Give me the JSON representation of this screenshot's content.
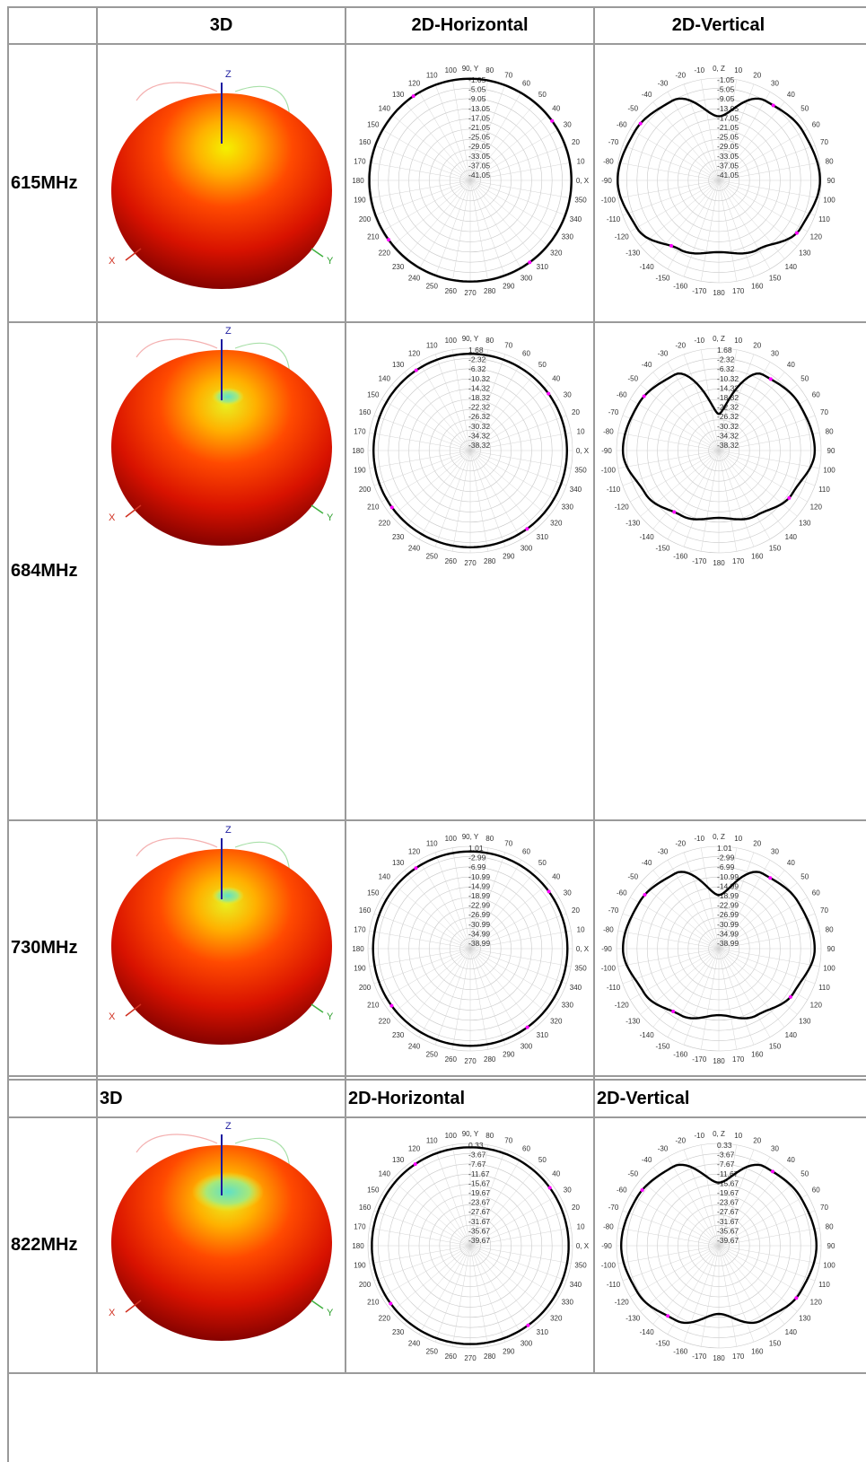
{
  "header1": {
    "c3d": "3D",
    "horizontal": "2D-Horizontal",
    "vertical": "2D-Vertical"
  },
  "header2": {
    "c3d": "3D",
    "horizontal": "2D-Horizontal",
    "vertical": "2D-Vertical"
  },
  "axes_3d": {
    "x": "X",
    "y": "Y",
    "z": "Z"
  },
  "rows": [
    {
      "freq": "615MHz",
      "horizontal_levels": [
        "-1.05",
        "-5.05",
        "-9.05",
        "-13.05",
        "-17.05",
        "-21.05",
        "-25.05",
        "-29.05",
        "-33.05",
        "-37.05",
        "-41.05"
      ],
      "vertical_levels": [
        "-1.05",
        "-5.05",
        "-9.05",
        "-13.05",
        "-17.05",
        "-21.05",
        "-25.05",
        "-29.05",
        "-33.05",
        "-37.05",
        "-41.05"
      ]
    },
    {
      "freq": "684MHz",
      "horizontal_levels": [
        "1.68",
        "-2.32",
        "-6.32",
        "-10.32",
        "-14.32",
        "-18.32",
        "-22.32",
        "-26.32",
        "-30.32",
        "-34.32",
        "-38.32"
      ],
      "vertical_levels": [
        "1.68",
        "-2.32",
        "-6.32",
        "-10.32",
        "-14.32",
        "-18.32",
        "-22.32",
        "-26.32",
        "-30.32",
        "-34.32",
        "-38.32"
      ]
    },
    {
      "freq": "730MHz",
      "horizontal_levels": [
        "1.01",
        "-2.99",
        "-6.99",
        "-10.99",
        "-14.99",
        "-18.99",
        "-22.99",
        "-26.99",
        "-30.99",
        "-34.99",
        "-38.99"
      ],
      "vertical_levels": [
        "1.01",
        "-2.99",
        "-6.99",
        "-10.99",
        "-14.99",
        "-18.99",
        "-22.99",
        "-26.99",
        "-30.99",
        "-34.99",
        "-38.99"
      ]
    },
    {
      "freq": "822MHz",
      "horizontal_levels": [
        "0.33",
        "-3.67",
        "-7.67",
        "-11.67",
        "-15.67",
        "-19.67",
        "-23.67",
        "-27.67",
        "-31.67",
        "-35.67",
        "-39.67"
      ],
      "vertical_levels": [
        "0.33",
        "-3.67",
        "-7.67",
        "-11.67",
        "-15.67",
        "-19.67",
        "-23.67",
        "-27.67",
        "-31.67",
        "-35.67",
        "-39.67"
      ]
    }
  ],
  "polar_labels": {
    "horizontal": [
      "0, X",
      "10",
      "20",
      "30",
      "40",
      "50",
      "60",
      "70",
      "80",
      "90, Y",
      "100",
      "110",
      "120",
      "130",
      "140",
      "150",
      "160",
      "170",
      "180",
      "190",
      "200",
      "210",
      "220",
      "230",
      "240",
      "250",
      "260",
      "270",
      "280",
      "290",
      "300",
      "310",
      "320",
      "330",
      "340",
      "350"
    ],
    "vertical": [
      "90",
      "80",
      "70",
      "60",
      "50",
      "40",
      "30",
      "20",
      "10",
      "0, Z",
      "-10",
      "-20",
      "-30",
      "-40",
      "-50",
      "-60",
      "-70",
      "-80",
      "-90",
      "-100",
      "-110",
      "-120",
      "-130",
      "-140",
      "-150",
      "-160",
      "-170",
      "180",
      "170",
      "160",
      "150",
      "140",
      "130",
      "120",
      "110",
      "100"
    ]
  },
  "chart_data": [
    {
      "type": "polar",
      "panel": "615MHz 2D-Horizontal",
      "angles_deg": [
        0,
        30,
        60,
        90,
        120,
        150,
        180,
        210,
        240,
        270,
        300,
        330
      ],
      "values_db": [
        -1.5,
        -1.5,
        -1.5,
        -1.3,
        -1.3,
        -1.5,
        -1.6,
        -1.6,
        -1.5,
        -1.5,
        -1.5,
        -1.5
      ],
      "rlim": [
        -41.05,
        -1.05
      ]
    },
    {
      "type": "polar",
      "panel": "615MHz 2D-Vertical",
      "angles_deg": [
        0,
        30,
        60,
        90,
        120,
        150,
        180,
        210,
        240,
        270,
        300,
        330
      ],
      "values_db": [
        -16,
        -5,
        -3,
        -1.5,
        -4,
        -10,
        -13,
        -10,
        -4,
        -1.5,
        -3,
        -5
      ],
      "rlim": [
        -41.05,
        -1.05
      ]
    },
    {
      "type": "polar",
      "panel": "684MHz 2D-Horizontal",
      "angles_deg": [
        0,
        30,
        60,
        90,
        120,
        150,
        180,
        210,
        240,
        270,
        300,
        330
      ],
      "values_db": [
        -0.5,
        -0.5,
        -0.5,
        -0.5,
        -0.5,
        -0.5,
        -0.5,
        -0.5,
        -0.5,
        -0.5,
        -0.5,
        -0.5
      ],
      "rlim": [
        -38.32,
        1.68
      ]
    },
    {
      "type": "polar",
      "panel": "684MHz 2D-Vertical",
      "angles_deg": [
        0,
        30,
        60,
        90,
        120,
        150,
        180,
        210,
        240,
        270,
        300,
        330
      ],
      "values_db": [
        -24,
        -4,
        -2,
        -0.8,
        -5,
        -9,
        -12,
        -9,
        -5,
        -0.8,
        -2,
        -4
      ],
      "rlim": [
        -38.32,
        1.68
      ]
    },
    {
      "type": "polar",
      "panel": "730MHz 2D-Horizontal",
      "angles_deg": [
        0,
        30,
        60,
        90,
        120,
        150,
        180,
        210,
        240,
        270,
        300,
        330
      ],
      "values_db": [
        -1,
        -1,
        -1,
        -1,
        -1,
        -1,
        -1,
        -1,
        -1,
        -1,
        -1,
        -1
      ],
      "rlim": [
        -38.99,
        1.01
      ]
    },
    {
      "type": "polar",
      "panel": "730MHz 2D-Vertical",
      "angles_deg": [
        0,
        30,
        60,
        90,
        120,
        150,
        180,
        210,
        240,
        270,
        300,
        330
      ],
      "values_db": [
        -18,
        -5,
        -3,
        -1.5,
        -5,
        -9,
        -13,
        -9,
        -5,
        -1.5,
        -3,
        -5
      ],
      "rlim": [
        -38.99,
        1.01
      ]
    },
    {
      "type": "polar",
      "panel": "822MHz 2D-Horizontal",
      "angles_deg": [
        0,
        30,
        60,
        90,
        120,
        150,
        180,
        210,
        240,
        270,
        300,
        330
      ],
      "values_db": [
        -1.2,
        -1.2,
        -1.2,
        -1.2,
        -1.2,
        -1.2,
        -1.2,
        -1.2,
        -1.2,
        -1.2,
        -1.2,
        -1.2
      ],
      "rlim": [
        -39.67,
        0.33
      ]
    },
    {
      "type": "polar",
      "panel": "822MHz 2D-Vertical",
      "angles_deg": [
        0,
        30,
        60,
        90,
        120,
        150,
        180,
        210,
        240,
        270,
        300,
        330
      ],
      "values_db": [
        -15,
        -4,
        -2.5,
        -1.5,
        -3,
        -6,
        -13,
        -6,
        -3,
        -1.5,
        -2.5,
        -4
      ],
      "rlim": [
        -39.67,
        0.33
      ]
    }
  ]
}
